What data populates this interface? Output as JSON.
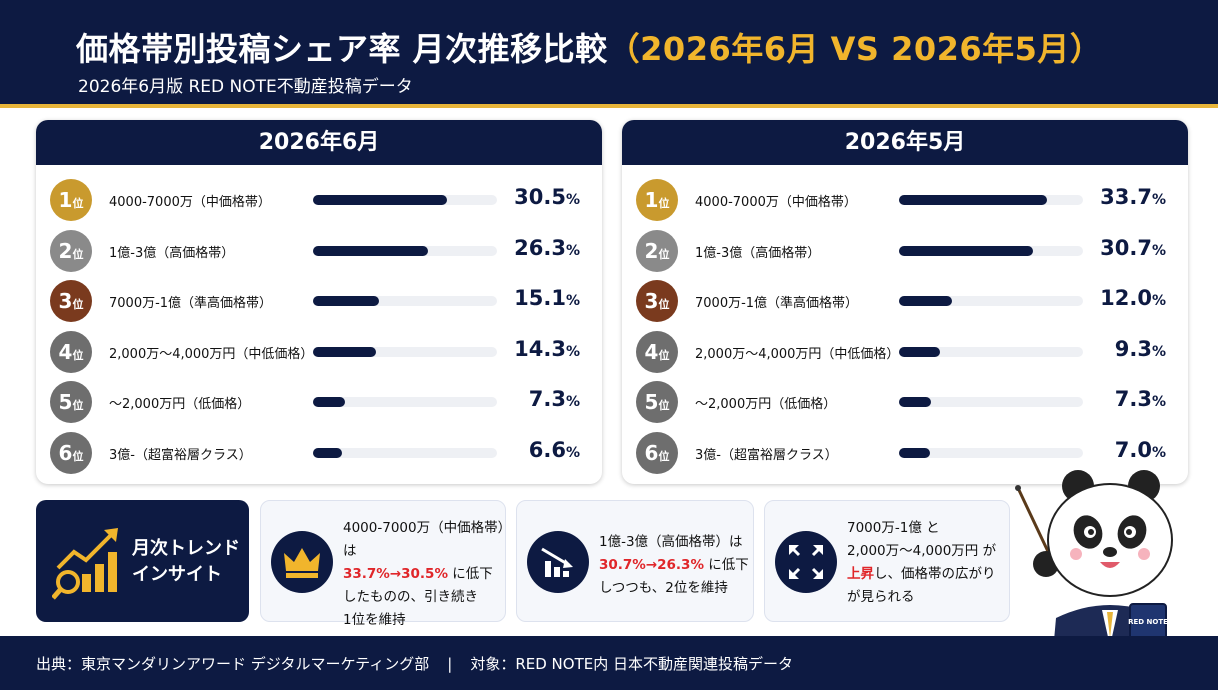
{
  "header": {
    "title": "価格帯別投稿シェア率 月次推移比較",
    "title_highlight": "（2026年6月 VS 2026年5月）",
    "subtitle": "2026年6月版 RED NOTE不動産投稿データ"
  },
  "rank_suffix": "位",
  "chart_data": [
    {
      "type": "bar",
      "title": "2026年6月",
      "categories": [
        "4000-7000万（中価格帯）",
        "1億-3億（高価格帯）",
        "7000万-1億（準高価格帯）",
        "2,000万～4,000万円（中低価格）",
        "～2,000万円（低価格）",
        "3億-（超富裕層クラス）"
      ],
      "values": [
        30.5,
        26.3,
        15.1,
        14.3,
        7.3,
        6.6
      ],
      "ranks": [
        "1",
        "2",
        "3",
        "4",
        "5",
        "6"
      ],
      "unit": "%",
      "ylim": [
        0,
        42
      ]
    },
    {
      "type": "bar",
      "title": "2026年5月",
      "categories": [
        "4000-7000万（中価格帯）",
        "1億-3億（高価格帯）",
        "7000万-1億（準高価格帯）",
        "2,000万～4,000万円（中低価格）",
        "～2,000万円（低価格）",
        "3億-（超富裕層クラス）"
      ],
      "values": [
        33.7,
        30.7,
        12.0,
        9.3,
        7.3,
        7.0
      ],
      "ranks": [
        "1",
        "2",
        "3",
        "4",
        "5",
        "6"
      ],
      "unit": "%",
      "ylim": [
        0,
        42
      ]
    }
  ],
  "colors": {
    "navy": "#0d1a42",
    "gold": "#f1b52c",
    "rank": [
      "#c99a2e",
      "#8a8a8a",
      "#7a3a1e",
      "#6e6e6e",
      "#6e6e6e",
      "#6e6e6e"
    ],
    "red": "#e0262a"
  },
  "insight": {
    "title_line1": "月次トレンド",
    "title_line2": "インサイト",
    "card1": {
      "icon": "crown-icon",
      "l1": "4000-7000万（中価格帯）は",
      "l2a": "33.7%→30.5%",
      "l2b": " に低下",
      "l3": "したものの、引き続き",
      "l4": "1位を維持"
    },
    "card2": {
      "icon": "chart-down-icon",
      "l1": "1億-3億（高価格帯）は",
      "l2a": "30.7%→26.3%",
      "l2b": " に低下",
      "l3": "しつつも、2位を維持"
    },
    "card3": {
      "icon": "expand-icon",
      "l1": "7000万-1億 と",
      "l2": "2,000万～4,000万円 が",
      "l3a": "上昇",
      "l3b": "し、価格帯の広がり",
      "l4": "が見られる"
    }
  },
  "footer": {
    "source": "出典：東京マンダリンアワード デジタルマーケティング部",
    "sep": "|",
    "target": "対象：RED NOTE内 日本不動産関連投稿データ"
  },
  "mascot": {
    "book_label": "RED NOTE"
  }
}
